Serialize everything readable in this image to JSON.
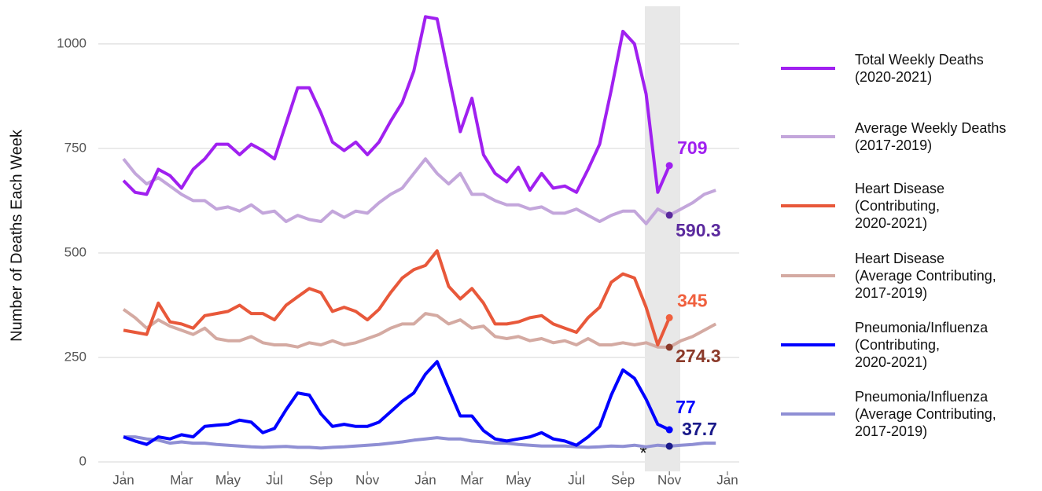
{
  "chart_data": {
    "type": "line",
    "ylabel": "Number of Deaths Each Week",
    "annotation": "*",
    "categories": [
      "Jan",
      null,
      null,
      null,
      null,
      "Mar",
      null,
      null,
      null,
      "May",
      null,
      null,
      null,
      "Jul",
      null,
      null,
      null,
      "Sep",
      null,
      null,
      null,
      "Nov",
      null,
      null,
      null,
      null,
      "Jan",
      null,
      null,
      null,
      "Mar",
      null,
      null,
      null,
      "May",
      null,
      null,
      null,
      null,
      "Jul",
      null,
      null,
      null,
      "Sep",
      null,
      null,
      null,
      "Nov",
      null,
      null,
      null,
      null,
      "Jan"
    ],
    "ylim": [
      0,
      1090
    ],
    "yticks": [
      0,
      250,
      500,
      750,
      1000
    ],
    "grid": true,
    "series": [
      {
        "name": "Total Weekly Deaths\n(2020-2021)",
        "color": "#a020f0",
        "label_color": "#a020f0",
        "values": [
          673,
          645,
          640,
          700,
          685,
          655,
          700,
          725,
          760,
          760,
          735,
          760,
          745,
          725,
          810,
          895,
          895,
          835,
          765,
          745,
          765,
          735,
          765,
          815,
          860,
          935,
          1065,
          1060,
          925,
          790,
          870,
          735,
          690,
          670,
          705,
          650,
          690,
          655,
          660,
          645,
          700,
          760,
          890,
          1030,
          1000,
          880,
          645,
          709,
          null,
          null,
          null,
          null,
          null
        ]
      },
      {
        "name": "Average Weekly Deaths\n(2017-2019)",
        "color": "#c3a6db",
        "label_color": "#5b2a9e",
        "values": [
          725,
          690,
          665,
          680,
          660,
          640,
          625,
          625,
          605,
          610,
          600,
          615,
          595,
          600,
          575,
          590,
          580,
          575,
          600,
          585,
          600,
          595,
          620,
          640,
          655,
          690,
          725,
          690,
          665,
          690,
          640,
          640,
          625,
          615,
          615,
          605,
          610,
          595,
          595,
          605,
          590,
          575,
          590,
          600,
          600,
          570,
          605,
          590.3,
          605,
          620,
          640,
          650,
          null
        ]
      },
      {
        "name": "Heart Disease\n(Contributing,\n2020-2021)",
        "color": "#e8583a",
        "label_color": "#f0603e",
        "values": [
          315,
          310,
          305,
          380,
          335,
          330,
          320,
          350,
          355,
          360,
          375,
          355,
          355,
          340,
          375,
          395,
          415,
          405,
          360,
          370,
          360,
          340,
          365,
          405,
          440,
          460,
          470,
          505,
          420,
          390,
          415,
          380,
          330,
          330,
          335,
          345,
          350,
          330,
          320,
          310,
          345,
          370,
          430,
          450,
          440,
          370,
          280,
          345,
          null,
          null,
          null,
          null,
          null
        ]
      },
      {
        "name": "Heart Disease\n(Average Contributing,\n2017-2019)",
        "color": "#d4aaa2",
        "label_color": "#8b3a2a",
        "values": [
          365,
          345,
          320,
          340,
          325,
          315,
          305,
          320,
          295,
          290,
          290,
          300,
          285,
          280,
          280,
          275,
          285,
          280,
          290,
          280,
          285,
          295,
          305,
          320,
          330,
          330,
          355,
          350,
          330,
          340,
          320,
          325,
          300,
          295,
          300,
          290,
          295,
          285,
          290,
          280,
          295,
          280,
          280,
          285,
          280,
          285,
          275,
          274.3,
          290,
          300,
          315,
          330,
          null
        ]
      },
      {
        "name": "Pneumonia/Influenza\n(Contributing,\n2020-2021)",
        "color": "#0000ff",
        "label_color": "#0000ff",
        "values": [
          60,
          50,
          42,
          60,
          55,
          65,
          60,
          85,
          88,
          90,
          100,
          95,
          70,
          80,
          125,
          165,
          160,
          115,
          85,
          90,
          85,
          85,
          95,
          120,
          145,
          165,
          210,
          240,
          175,
          110,
          110,
          75,
          55,
          50,
          55,
          60,
          70,
          55,
          50,
          40,
          60,
          85,
          160,
          220,
          200,
          150,
          90,
          77,
          null,
          null,
          null,
          null,
          null
        ]
      },
      {
        "name": "Pneumonia/Influenza\n(Average Contributing,\n2017-2019)",
        "color": "#8f8fd4",
        "label_color": "#1a1a8a",
        "values": [
          60,
          60,
          55,
          52,
          45,
          48,
          45,
          45,
          42,
          40,
          38,
          36,
          35,
          36,
          37,
          35,
          35,
          33,
          35,
          36,
          38,
          40,
          42,
          45,
          48,
          52,
          55,
          58,
          55,
          55,
          50,
          48,
          45,
          45,
          42,
          40,
          38,
          38,
          38,
          36,
          35,
          36,
          38,
          37,
          40,
          36,
          40,
          37.7,
          40,
          42,
          45,
          45,
          null
        ]
      }
    ]
  }
}
